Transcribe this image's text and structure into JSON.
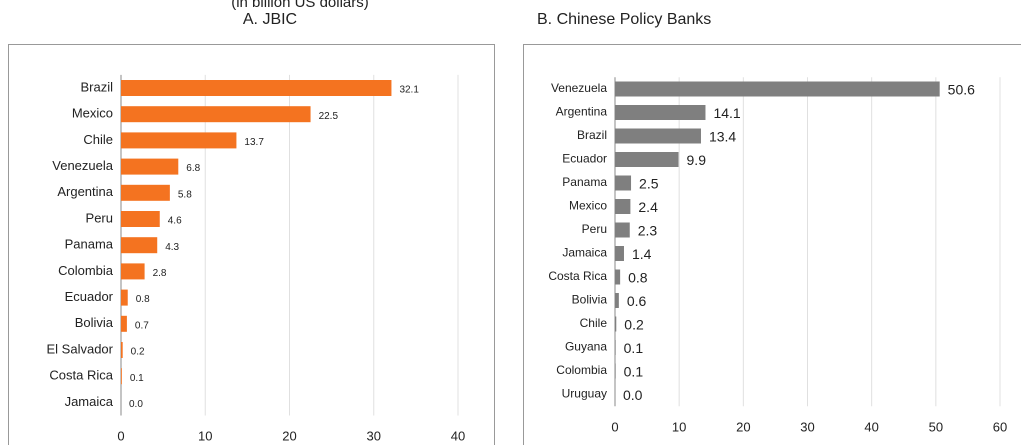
{
  "header": {
    "subtitle": "(in billion US dollars)"
  },
  "chart_data": [
    {
      "type": "bar",
      "orientation": "horizontal",
      "title": "A. JBIC",
      "categories": [
        "Brazil",
        "Mexico",
        "Chile",
        "Venezuela",
        "Argentina",
        "Peru",
        "Panama",
        "Colombia",
        "Ecuador",
        "Bolivia",
        "El Salvador",
        "Costa Rica",
        "Jamaica"
      ],
      "values": [
        32.1,
        22.5,
        13.7,
        6.8,
        5.8,
        4.6,
        4.3,
        2.8,
        0.8,
        0.7,
        0.2,
        0.1,
        0.0
      ],
      "value_labels": [
        "32.1",
        "22.5",
        "13.7",
        "6.8",
        "5.8",
        "4.6",
        "4.3",
        "2.8",
        "0.8",
        "0.7",
        "0.2",
        "0.1",
        "0.0"
      ],
      "color": "#f47320",
      "xlim": [
        0,
        40
      ],
      "xticks": [
        0,
        10,
        20,
        30,
        40
      ],
      "grid": true
    },
    {
      "type": "bar",
      "orientation": "horizontal",
      "title": "B. Chinese Policy Banks",
      "categories": [
        "Venezuela",
        "Argentina",
        "Brazil",
        "Ecuador",
        "Panama",
        "Mexico",
        "Peru",
        "Jamaica",
        "Costa Rica",
        "Bolivia",
        "Chile",
        "Guyana",
        "Colombia",
        "Uruguay"
      ],
      "values": [
        50.6,
        14.1,
        13.4,
        9.9,
        2.5,
        2.4,
        2.3,
        1.4,
        0.8,
        0.6,
        0.2,
        0.1,
        0.1,
        0.0
      ],
      "value_labels": [
        "50.6",
        "14.1",
        "13.4",
        "9.9",
        "2.5",
        "2.4",
        "2.3",
        "1.4",
        "0.8",
        "0.6",
        "0.2",
        "0.1",
        "0.1",
        "0.0"
      ],
      "color": "#7f7f7f",
      "xlim": [
        0,
        60
      ],
      "xticks": [
        0,
        10,
        20,
        30,
        40,
        50,
        60
      ],
      "grid": true
    }
  ]
}
